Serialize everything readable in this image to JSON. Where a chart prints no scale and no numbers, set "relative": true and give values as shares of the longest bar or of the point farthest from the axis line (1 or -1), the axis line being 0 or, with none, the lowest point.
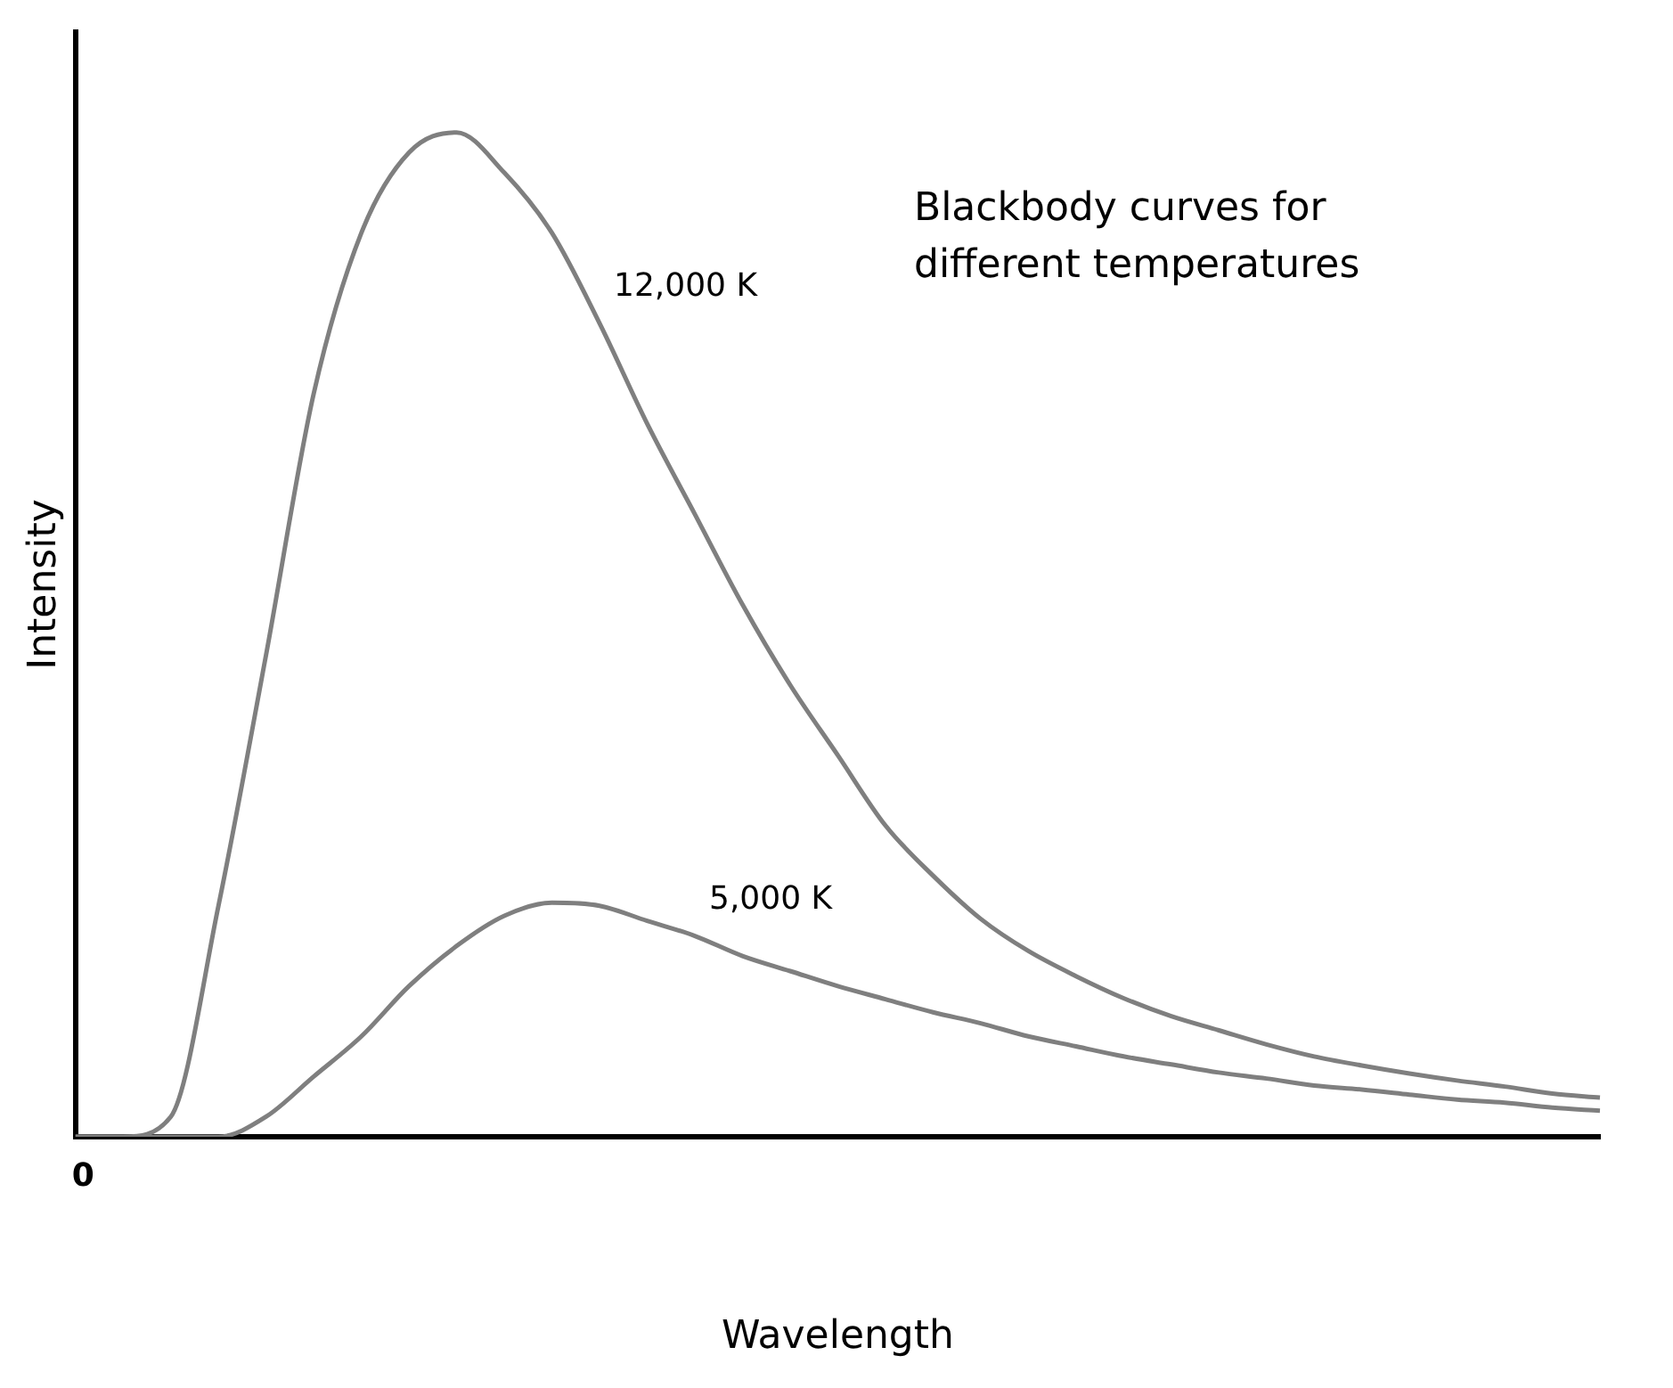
{
  "chart_data": {
    "type": "line",
    "relative": true,
    "xlabel": "Wavelength",
    "ylabel": "Intensity",
    "annotations": [
      "0",
      "Blackbody curves for\ndifferent temperatures"
    ],
    "categories": [
      null,
      null,
      null,
      null,
      null,
      null,
      null,
      null,
      null,
      null,
      null,
      null,
      null,
      null,
      null,
      null,
      null,
      null,
      null,
      null,
      null,
      null,
      null,
      null,
      null,
      null,
      null,
      null,
      null,
      null,
      null,
      null,
      null
    ],
    "series": [
      {
        "name": "12,000 K",
        "color": "#7f7f7f",
        "values": [
          0,
          0,
          0.02,
          0.23,
          0.48,
          0.74,
          0.9,
          0.98,
          1.0,
          0.96,
          0.9,
          0.81,
          0.71,
          0.62,
          0.53,
          0.45,
          0.38,
          0.31,
          0.26,
          0.217,
          0.185,
          0.16,
          0.138,
          0.12,
          0.106,
          0.092,
          0.08,
          0.071,
          0.063,
          0.056,
          0.05,
          0.043,
          0.039
        ]
      },
      {
        "name": "5,000 K",
        "color": "#7f7f7f",
        "values": [
          0,
          0,
          0,
          0,
          0.02,
          0.06,
          0.1,
          0.15,
          0.19,
          0.22,
          0.233,
          0.23,
          0.215,
          0.2,
          0.18,
          0.165,
          0.15,
          0.137,
          0.124,
          0.113,
          0.1,
          0.09,
          0.08,
          0.072,
          0.064,
          0.058,
          0.051,
          0.047,
          0.042,
          0.037,
          0.034,
          0.029,
          0.026
        ]
      }
    ],
    "grid": false,
    "legend": false,
    "marker": "none",
    "line_style": "solid"
  }
}
